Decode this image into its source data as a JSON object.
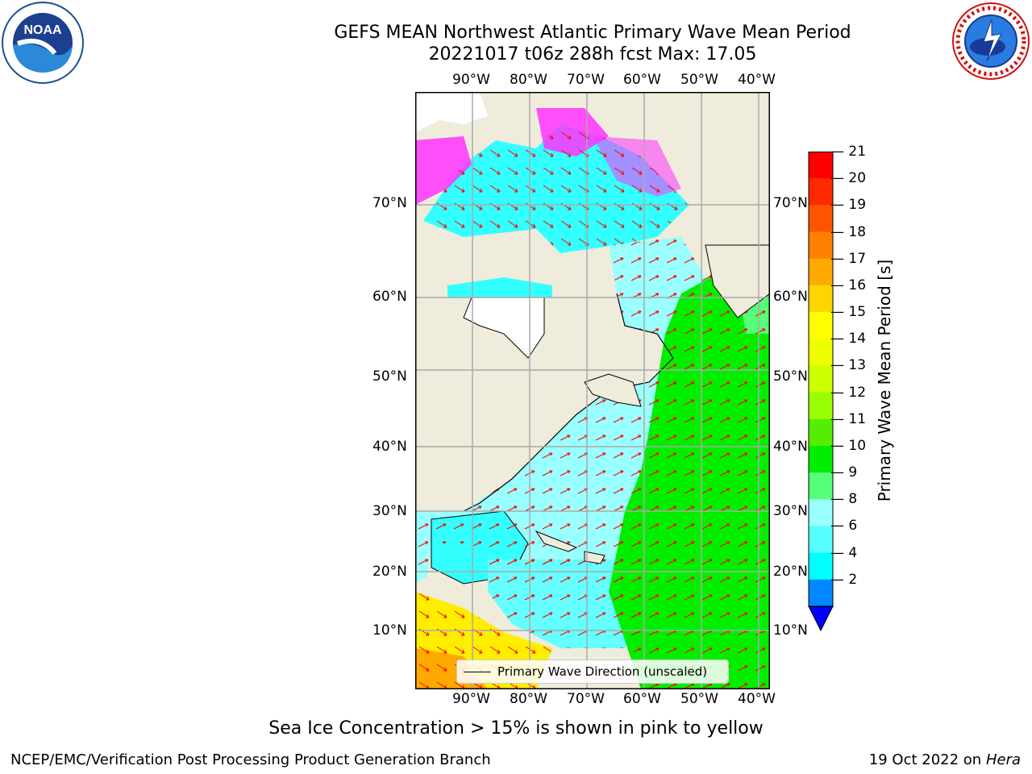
{
  "header": {
    "title_line1": "GEFS MEAN Northwest Atlantic Primary Wave Mean Period",
    "title_line2": "20221017 t06z 288h fcst   Max: 17.05"
  },
  "logos": {
    "left": "NOAA",
    "right": "NATIONAL WEATHER SERVICE"
  },
  "map": {
    "lon_labels": [
      "90°W",
      "80°W",
      "70°W",
      "60°W",
      "50°W",
      "40°W"
    ],
    "lat_labels": [
      "70°N",
      "60°N",
      "50°N",
      "40°N",
      "30°N",
      "20°N",
      "10°N"
    ],
    "legend_label": "Primary Wave Direction (unscaled)",
    "colors": {
      "land": "#efecdc",
      "ocean_low": "#33ffff",
      "ocean_mid": "#99ffff",
      "ocean_high": "#00ee00",
      "ice": "#ff33ff",
      "arrow": "#ff0000"
    }
  },
  "colorbar": {
    "label": "Primary Wave Mean Period [s]",
    "ticks": [
      "21",
      "20",
      "19",
      "18",
      "17",
      "16",
      "15",
      "14",
      "13",
      "12",
      "11",
      "10",
      "9",
      "8",
      "6",
      "4",
      "2"
    ],
    "colors": [
      "#ff0000",
      "#ff2a00",
      "#ff5500",
      "#ff8000",
      "#ffaa00",
      "#ffd500",
      "#ffff00",
      "#eeff00",
      "#ccff00",
      "#99ff00",
      "#55ee00",
      "#00ee00",
      "#55ff77",
      "#99ffff",
      "#55ffff",
      "#00ffff",
      "#0088ff",
      "#0000ff"
    ]
  },
  "footer": {
    "note": "Sea Ice Concentration > 15% is shown in pink to yellow",
    "left": "NCEP/EMC/Verification Post Processing Product Generation Branch",
    "right_date": "19 Oct 2022 on ",
    "right_machine": "Hera"
  }
}
